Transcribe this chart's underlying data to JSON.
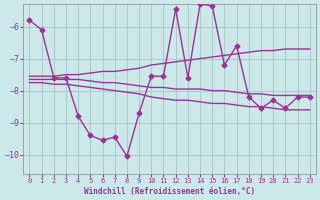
{
  "xlabel": "Windchill (Refroidissement éolien,°C)",
  "background_color": "#cce8e8",
  "grid_color": "#aacccc",
  "line_color": "#993399",
  "x": [
    0,
    1,
    2,
    3,
    4,
    5,
    6,
    7,
    8,
    9,
    10,
    11,
    12,
    13,
    14,
    15,
    16,
    17,
    18,
    19,
    20,
    21,
    22,
    23
  ],
  "main": [
    -5.8,
    -6.1,
    -7.6,
    -7.6,
    -8.8,
    -9.4,
    -9.55,
    -9.45,
    -10.05,
    -8.7,
    -7.55,
    -7.55,
    -5.45,
    -7.6,
    -5.3,
    -5.35,
    -7.2,
    -6.6,
    -8.2,
    -8.55,
    -8.3,
    -8.55,
    -8.2,
    -8.2
  ],
  "upper": [
    -7.55,
    -7.55,
    -7.55,
    -7.5,
    -7.5,
    -7.45,
    -7.4,
    -7.4,
    -7.35,
    -7.3,
    -7.2,
    -7.15,
    -7.1,
    -7.05,
    -7.0,
    -6.95,
    -6.9,
    -6.85,
    -6.8,
    -6.75,
    -6.75,
    -6.7,
    -6.7,
    -6.7
  ],
  "middle": [
    -7.65,
    -7.65,
    -7.65,
    -7.65,
    -7.65,
    -7.7,
    -7.75,
    -7.75,
    -7.8,
    -7.85,
    -7.9,
    -7.9,
    -7.95,
    -7.95,
    -7.95,
    -8.0,
    -8.0,
    -8.05,
    -8.1,
    -8.1,
    -8.15,
    -8.15,
    -8.15,
    -8.15
  ],
  "lower": [
    -7.75,
    -7.75,
    -7.8,
    -7.8,
    -7.85,
    -7.9,
    -7.95,
    -8.0,
    -8.05,
    -8.1,
    -8.2,
    -8.25,
    -8.3,
    -8.3,
    -8.35,
    -8.4,
    -8.4,
    -8.45,
    -8.5,
    -8.5,
    -8.55,
    -8.6,
    -8.6,
    -8.6
  ],
  "ylim": [
    -10.6,
    -5.3
  ],
  "yticks": [
    -10,
    -9,
    -8,
    -7,
    -6
  ],
  "xlim": [
    -0.5,
    23.5
  ],
  "xticks": [
    0,
    1,
    2,
    3,
    4,
    5,
    6,
    7,
    8,
    9,
    10,
    11,
    12,
    13,
    14,
    15,
    16,
    17,
    18,
    19,
    20,
    21,
    22,
    23
  ]
}
